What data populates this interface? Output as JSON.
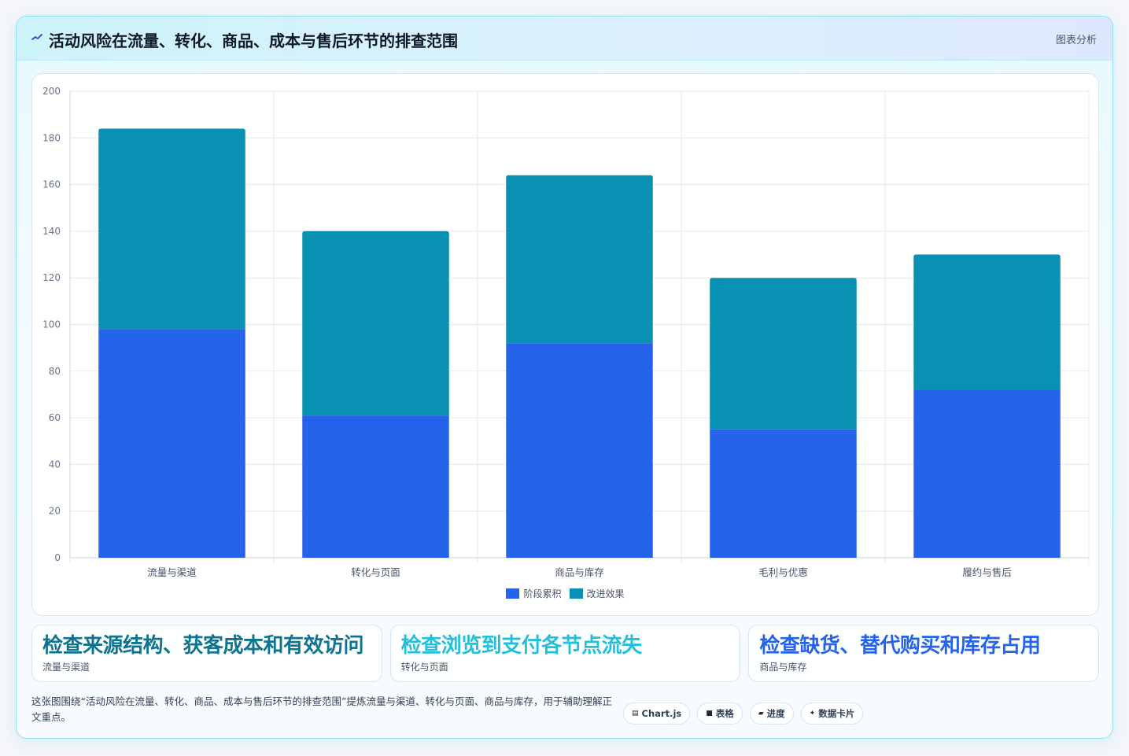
{
  "header": {
    "title": "活动风险在流量、转化、商品、成本与售后环节的排查范围",
    "action_label": "图表分析",
    "icon": "sparkline-icon"
  },
  "chart_data": {
    "type": "bar",
    "stacked": true,
    "title": "",
    "xlabel": "",
    "ylabel": "",
    "categories": [
      "流量与渠道",
      "转化与页面",
      "商品与库存",
      "毛利与优惠",
      "履约与售后"
    ],
    "series": [
      {
        "name": "阶段累积",
        "values": [
          98,
          61,
          92,
          55,
          72
        ],
        "color": "#2563eb"
      },
      {
        "name": "改进效果",
        "values": [
          86,
          79,
          72,
          65,
          58
        ],
        "color": "#0891b2"
      }
    ],
    "ylim": [
      0,
      200
    ],
    "yticks": [
      0,
      20,
      40,
      60,
      80,
      100,
      120,
      140,
      160,
      180,
      200
    ],
    "grid": true,
    "legend_position": "bottom"
  },
  "insights": [
    {
      "value": "检查来源结构、获客成本和有效访问",
      "label": "流量与渠道",
      "color": "#0e7490"
    },
    {
      "value": "检查浏览到支付各节点流失",
      "label": "转化与页面",
      "color": "#22c0dc"
    },
    {
      "value": "检查缺货、替代购买和库存占用",
      "label": "商品与库存",
      "color": "#2563eb"
    }
  ],
  "footer": {
    "description": "这张图围绕“活动风险在流量、转化、商品、成本与售后环节的排查范围”提炼流量与渠道、转化与页面、商品与库存，用于辅助理解正文重点。",
    "chips": [
      {
        "icon": "chart-icon",
        "glyph": "▤",
        "label": "Chart.js"
      },
      {
        "icon": "table-icon",
        "glyph": "■",
        "label": "表格"
      },
      {
        "icon": "progress-icon",
        "glyph": "▰",
        "label": "进度"
      },
      {
        "icon": "card-icon",
        "glyph": "✦",
        "label": "数据卡片"
      }
    ]
  }
}
